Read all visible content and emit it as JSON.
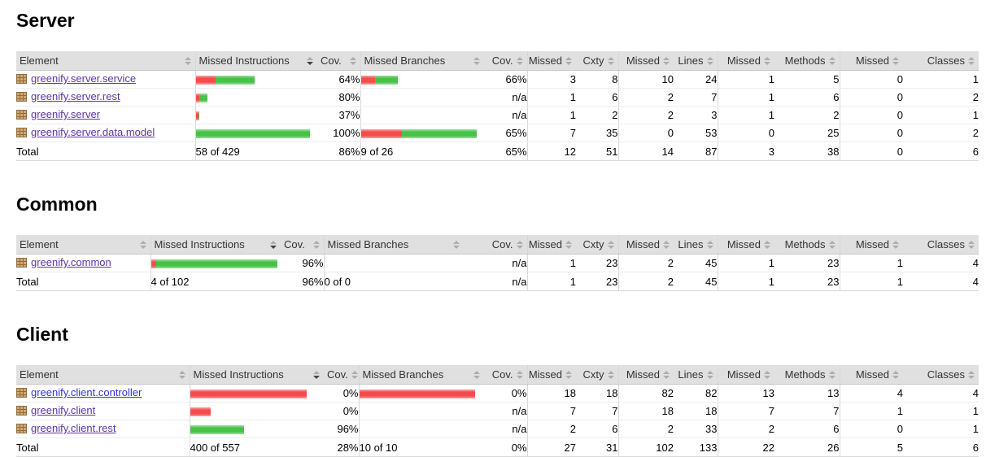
{
  "report_type": "coverage-report",
  "colors": {
    "missed_bar": "#f34c4c",
    "covered_bar": "#47c247",
    "visited_link": "#5b35a7",
    "unvisited_link": "#3434d6",
    "header_bg": "#e0e0e0"
  },
  "columns": [
    {
      "label": "Element",
      "sorted": null
    },
    {
      "label": "Missed Instructions",
      "sorted": "desc"
    },
    {
      "label": "Cov.",
      "sorted": null
    },
    {
      "label": "Missed Branches",
      "sorted": null
    },
    {
      "label": "Cov.",
      "sorted": null
    },
    {
      "label": "Missed",
      "sorted": null
    },
    {
      "label": "Cxty",
      "sorted": null
    },
    {
      "label": "Missed",
      "sorted": null
    },
    {
      "label": "Lines",
      "sorted": null
    },
    {
      "label": "Missed",
      "sorted": null
    },
    {
      "label": "Methods",
      "sorted": null
    },
    {
      "label": "Missed",
      "sorted": null
    },
    {
      "label": "Classes",
      "sorted": null
    }
  ],
  "sections": [
    {
      "title": "Server",
      "rows": [
        {
          "package": "greenify.server.service",
          "visited": true,
          "instr_bar": {
            "red": 24,
            "green": 48
          },
          "branch_bar": {
            "red": 17,
            "green": 28
          },
          "values": {
            "instr_cov": "64%",
            "branch_cov": "66%",
            "missed_cxty": "3",
            "cxty": "8",
            "missed_lines": "10",
            "lines": "24",
            "missed_methods": "1",
            "methods": "5",
            "missed_classes": "0",
            "classes": "1"
          }
        },
        {
          "package": "greenify.server.rest",
          "visited": true,
          "instr_bar": {
            "red": 4,
            "green": 10
          },
          "branch_bar": null,
          "values": {
            "instr_cov": "80%",
            "branch_cov": "n/a",
            "missed_cxty": "1",
            "cxty": "6",
            "missed_lines": "2",
            "lines": "7",
            "missed_methods": "1",
            "methods": "6",
            "missed_classes": "0",
            "classes": "2"
          }
        },
        {
          "package": "greenify.server",
          "visited": true,
          "instr_bar": {
            "red": 3,
            "green": 1
          },
          "branch_bar": null,
          "values": {
            "instr_cov": "37%",
            "branch_cov": "n/a",
            "missed_cxty": "1",
            "cxty": "2",
            "missed_lines": "2",
            "lines": "3",
            "missed_methods": "1",
            "methods": "2",
            "missed_classes": "0",
            "classes": "1"
          }
        },
        {
          "package": "greenify.server.data.model",
          "visited": true,
          "instr_bar": {
            "red": 0,
            "green": 140
          },
          "branch_bar": {
            "red": 50,
            "green": 92
          },
          "values": {
            "instr_cov": "100%",
            "branch_cov": "65%",
            "missed_cxty": "7",
            "cxty": "35",
            "missed_lines": "0",
            "lines": "53",
            "missed_methods": "0",
            "methods": "25",
            "missed_classes": "0",
            "classes": "2"
          }
        }
      ],
      "total": {
        "label": "Total",
        "values": {
          "instr_text": "58 of 429",
          "instr_cov": "86%",
          "branch_text": "9 of 26",
          "branch_cov": "65%",
          "missed_cxty": "12",
          "cxty": "51",
          "missed_lines": "14",
          "lines": "87",
          "missed_methods": "3",
          "methods": "38",
          "missed_classes": "0",
          "classes": "6"
        }
      }
    },
    {
      "title": "Common",
      "rows": [
        {
          "package": "greenify.common",
          "visited": true,
          "instr_bar": {
            "red": 6,
            "green": 149
          },
          "branch_bar": null,
          "values": {
            "instr_cov": "96%",
            "branch_cov": "n/a",
            "missed_cxty": "1",
            "cxty": "23",
            "missed_lines": "2",
            "lines": "45",
            "missed_methods": "1",
            "methods": "23",
            "missed_classes": "1",
            "classes": "4"
          }
        }
      ],
      "total": {
        "label": "Total",
        "values": {
          "instr_text": "4 of 102",
          "instr_cov": "96%",
          "branch_text": "0 of 0",
          "branch_cov": "n/a",
          "missed_cxty": "1",
          "cxty": "23",
          "missed_lines": "2",
          "lines": "45",
          "missed_methods": "1",
          "methods": "23",
          "missed_classes": "1",
          "classes": "4"
        }
      }
    },
    {
      "title": "Client",
      "rows": [
        {
          "package": "greenify.client.controller",
          "visited": false,
          "instr_bar": {
            "red": 143,
            "green": 0
          },
          "branch_bar": {
            "red": 142,
            "green": 0
          },
          "values": {
            "instr_cov": "0%",
            "branch_cov": "0%",
            "missed_cxty": "18",
            "cxty": "18",
            "missed_lines": "82",
            "lines": "82",
            "missed_methods": "13",
            "methods": "13",
            "missed_classes": "4",
            "classes": "4"
          }
        },
        {
          "package": "greenify.client",
          "visited": true,
          "instr_bar": {
            "red": 25,
            "green": 0
          },
          "branch_bar": null,
          "values": {
            "instr_cov": "0%",
            "branch_cov": "n/a",
            "missed_cxty": "7",
            "cxty": "7",
            "missed_lines": "18",
            "lines": "18",
            "missed_methods": "7",
            "methods": "7",
            "missed_classes": "1",
            "classes": "1"
          }
        },
        {
          "package": "greenify.client.rest",
          "visited": true,
          "instr_bar": {
            "red": 0,
            "green": 66
          },
          "branch_bar": null,
          "values": {
            "instr_cov": "96%",
            "branch_cov": "n/a",
            "missed_cxty": "2",
            "cxty": "6",
            "missed_lines": "2",
            "lines": "33",
            "missed_methods": "2",
            "methods": "6",
            "missed_classes": "0",
            "classes": "1"
          }
        }
      ],
      "total": {
        "label": "Total",
        "values": {
          "instr_text": "400 of 557",
          "instr_cov": "28%",
          "branch_text": "10 of 10",
          "branch_cov": "0%",
          "missed_cxty": "27",
          "cxty": "31",
          "missed_lines": "102",
          "lines": "133",
          "missed_methods": "22",
          "methods": "26",
          "missed_classes": "5",
          "classes": "6"
        }
      }
    }
  ]
}
